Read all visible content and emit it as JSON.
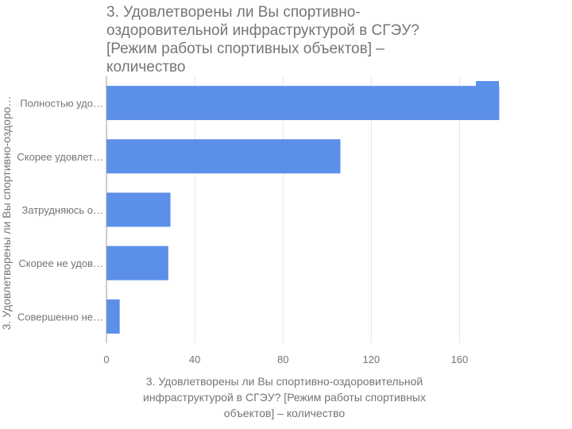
{
  "chart_data": {
    "type": "bar",
    "orientation": "horizontal",
    "title": "3. Удовлетворены ли Вы спортивно-\nоздоровительной инфраструктурой в СГЭУ?\n[Режим работы спортивных объектов] –\nколичество",
    "ylabel": "3. Удовлетворены ли Вы спортивно-оздоро…",
    "xlabel": "3. Удовлетворены ли Вы спортивно-оздоровительной\nинфраструктурой в СГЭУ? [Режим работы спортивных\nобъектов] – количество",
    "categories": [
      "Полностью удо…",
      "Скорее удовлет…",
      "Затрудняюсь о…",
      "Скорее не удов…",
      "Совершенно не…"
    ],
    "values": [
      178,
      106,
      29,
      28,
      6
    ],
    "xlim": [
      0,
      180
    ],
    "xticks": [
      0,
      40,
      80,
      120,
      160
    ],
    "grid": "vertical",
    "legend": "top-right",
    "bar_color": "#5b8fea"
  }
}
